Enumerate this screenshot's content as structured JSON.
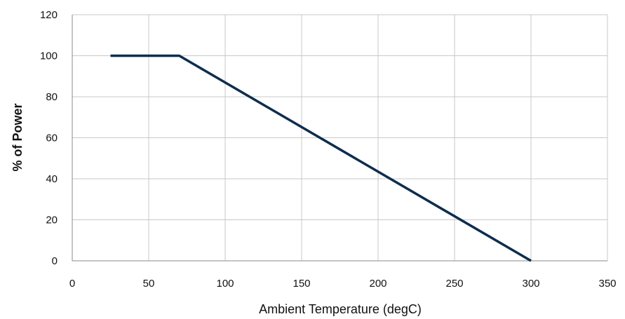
{
  "chart_data": {
    "type": "line",
    "title": "",
    "xlabel": "Ambient Temperature (degC)",
    "ylabel": "% of Power",
    "xlim": [
      0,
      350
    ],
    "ylim": [
      0,
      120
    ],
    "x_ticks": [
      "0",
      "50",
      "100",
      "150",
      "200",
      "250",
      "300",
      "350"
    ],
    "y_ticks": [
      "0",
      "20",
      "40",
      "60",
      "80",
      "100",
      "120"
    ],
    "grid": true,
    "legend": "none",
    "line_color": "#0d2d4f",
    "series": [
      {
        "x": [
          25,
          70,
          300
        ],
        "y": [
          100,
          100,
          0
        ]
      }
    ]
  }
}
